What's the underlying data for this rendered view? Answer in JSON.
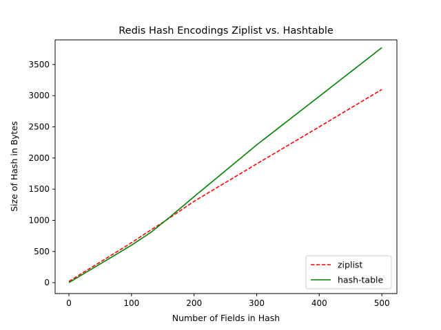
{
  "chart_data": {
    "type": "line",
    "title": "Redis Hash Encodings Ziplist vs. Hashtable",
    "xlabel": "Number of Fields in Hash",
    "ylabel": "Size of Hash in Bytes",
    "xlim": [
      -22,
      524
    ],
    "ylim": [
      -175,
      3895
    ],
    "xticks": [
      0,
      100,
      200,
      300,
      400,
      500
    ],
    "yticks": [
      0,
      500,
      1000,
      1500,
      2000,
      2500,
      3000,
      3500
    ],
    "grid": false,
    "legend_position": "lower-right",
    "series": [
      {
        "name": "ziplist",
        "color": "#ff0000",
        "style": "dashed",
        "x": [
          0,
          100,
          130,
          150,
          200,
          300,
          400,
          500
        ],
        "y": [
          20,
          640,
          840,
          965,
          1305,
          1905,
          2500,
          3100
        ]
      },
      {
        "name": "hash-table",
        "color": "#008000",
        "style": "solid",
        "x": [
          0,
          100,
          130,
          160,
          200,
          300,
          400,
          500
        ],
        "y": [
          0,
          600,
          800,
          1040,
          1380,
          2210,
          2990,
          3770
        ]
      }
    ]
  }
}
